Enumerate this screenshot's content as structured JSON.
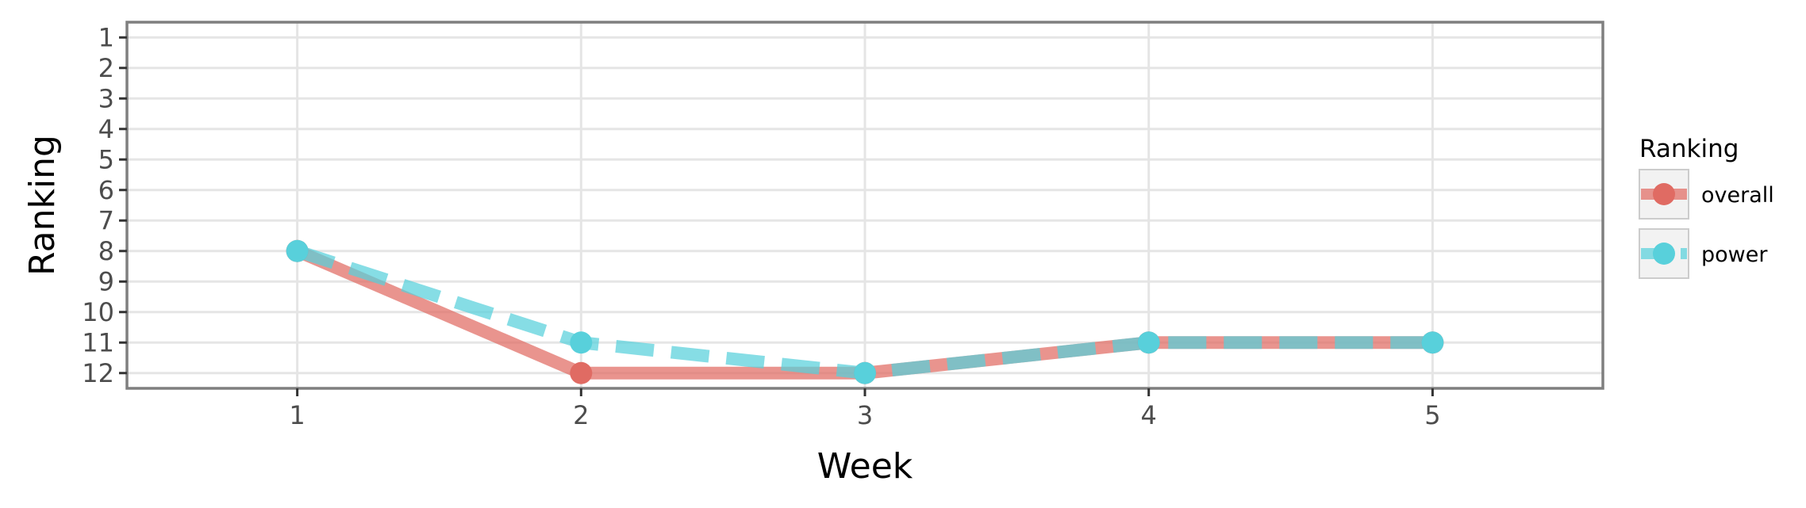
{
  "chart_data": {
    "type": "line",
    "title": "",
    "xlabel": "Week",
    "ylabel": "Ranking",
    "x": [
      1,
      2,
      3,
      4,
      5
    ],
    "x_ticks": [
      1,
      2,
      3,
      4,
      5
    ],
    "y_ticks": [
      1,
      2,
      3,
      4,
      5,
      6,
      7,
      8,
      9,
      10,
      11,
      12
    ],
    "xlim": [
      0.4,
      5.6
    ],
    "ylim": [
      12.5,
      0.5
    ],
    "y_reversed": true,
    "grid": true,
    "legend": {
      "title": "Ranking",
      "position": "right"
    },
    "series": [
      {
        "name": "overall",
        "values": [
          8,
          12,
          12,
          11,
          11
        ],
        "color": "#e06b63",
        "line_style": "solid"
      },
      {
        "name": "power",
        "values": [
          8,
          11,
          12,
          11,
          11
        ],
        "color": "#58d0db",
        "line_style": "dashed"
      }
    ]
  }
}
